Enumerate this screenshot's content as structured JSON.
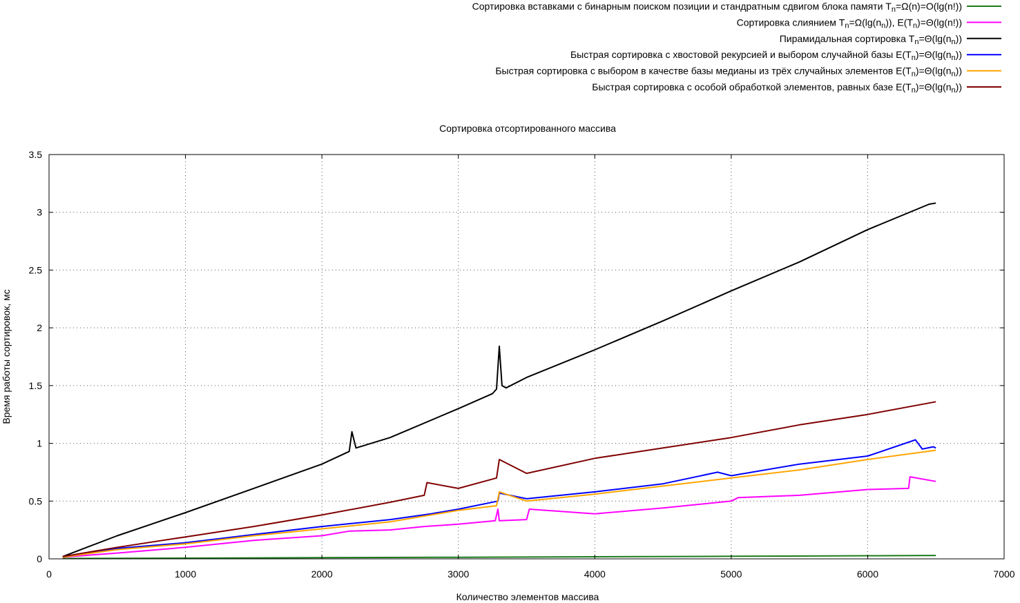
{
  "chart_data": {
    "type": "line",
    "title": "Сортировка отсортированного массива",
    "xlabel": "Количество элементов массива",
    "ylabel": "Время работы сортировок, мс",
    "xlim": [
      0,
      7000
    ],
    "ylim": [
      0,
      3.5
    ],
    "xticks": [
      0,
      1000,
      2000,
      3000,
      4000,
      5000,
      6000,
      7000
    ],
    "yticks": [
      0,
      0.5,
      1,
      1.5,
      2,
      2.5,
      3,
      3.5
    ],
    "grid": "dotted",
    "legend_placement": "top-right",
    "series": [
      {
        "legend": [
          "Сортировка вставками с бинарным поиском позиции и стандратным сдвигом блока памяти T",
          "n",
          "=Ω(n)=O(lg(n!))"
        ],
        "color": "#1a7a1a",
        "x": [
          100,
          1000,
          2000,
          3000,
          4000,
          5000,
          6000,
          6500
        ],
        "y": [
          0.003,
          0.006,
          0.01,
          0.014,
          0.018,
          0.022,
          0.027,
          0.029
        ]
      },
      {
        "legend": [
          "Сортировка слиянием T",
          "n",
          "=Ω(lg(n",
          "n",
          ")), E(T",
          "n",
          ")=Θ(lg(n!))"
        ],
        "color": "#ff00ff",
        "x": [
          100,
          500,
          1000,
          1500,
          2000,
          2200,
          2500,
          2750,
          3000,
          3270,
          3290,
          3300,
          3500,
          3520,
          4000,
          4500,
          5000,
          5050,
          5500,
          6000,
          6300,
          6310,
          6500
        ],
        "y": [
          0.015,
          0.05,
          0.1,
          0.16,
          0.2,
          0.24,
          0.25,
          0.28,
          0.3,
          0.33,
          0.43,
          0.33,
          0.34,
          0.43,
          0.39,
          0.44,
          0.5,
          0.53,
          0.55,
          0.6,
          0.61,
          0.71,
          0.67
        ]
      },
      {
        "legend": [
          "Пирамидальная сортировка T",
          "n",
          "=Θ(lg(n",
          "n",
          "))"
        ],
        "color": "#000000",
        "x": [
          100,
          500,
          1000,
          1500,
          2000,
          2200,
          2220,
          2250,
          2500,
          3000,
          3250,
          3280,
          3300,
          3320,
          3350,
          3500,
          4000,
          4500,
          5000,
          5500,
          6000,
          6450,
          6500
        ],
        "y": [
          0.02,
          0.2,
          0.4,
          0.61,
          0.82,
          0.93,
          1.1,
          0.96,
          1.05,
          1.3,
          1.43,
          1.47,
          1.84,
          1.5,
          1.48,
          1.57,
          1.81,
          2.06,
          2.32,
          2.57,
          2.85,
          3.07,
          3.08
        ]
      },
      {
        "legend": [
          "Быстрая сортировка с хвостовой рекурсией и выбором случайной базы E(T",
          "n",
          ")=Θ(lg(n",
          "n",
          "))"
        ],
        "color": "#0000ff",
        "x": [
          100,
          500,
          1000,
          1500,
          2000,
          2500,
          2800,
          3000,
          3290,
          3300,
          3500,
          4000,
          4500,
          4900,
          5000,
          5500,
          6000,
          6350,
          6400,
          6480,
          6500
        ],
        "y": [
          0.02,
          0.09,
          0.14,
          0.21,
          0.28,
          0.34,
          0.39,
          0.43,
          0.5,
          0.57,
          0.52,
          0.58,
          0.65,
          0.75,
          0.72,
          0.82,
          0.89,
          1.03,
          0.95,
          0.97,
          0.96
        ]
      },
      {
        "legend": [
          "Быстрая сортировка с выбором в качестве базы медианы из трёх случайных элементов E(T",
          "n",
          ")=Θ(lg(n",
          "n",
          "))"
        ],
        "color": "#ffa500",
        "x": [
          100,
          500,
          1000,
          1500,
          2000,
          2500,
          3000,
          3280,
          3300,
          3500,
          4000,
          4500,
          5000,
          5500,
          6000,
          6500
        ],
        "y": [
          0.015,
          0.08,
          0.13,
          0.2,
          0.26,
          0.32,
          0.42,
          0.46,
          0.58,
          0.5,
          0.56,
          0.63,
          0.7,
          0.77,
          0.86,
          0.94
        ]
      },
      {
        "legend": [
          "Быстрая сортировка с особой обработкой элементов, равных базе E(T",
          "n",
          ")=Θ(lg(n",
          "n",
          "))"
        ],
        "color": "#7f0000",
        "x": [
          100,
          500,
          1000,
          1500,
          2000,
          2500,
          2750,
          2770,
          3000,
          3280,
          3300,
          3500,
          4000,
          4500,
          5000,
          5500,
          6000,
          6500
        ],
        "y": [
          0.02,
          0.1,
          0.19,
          0.28,
          0.38,
          0.49,
          0.55,
          0.66,
          0.61,
          0.7,
          0.86,
          0.74,
          0.87,
          0.96,
          1.05,
          1.16,
          1.25,
          1.36
        ]
      }
    ]
  }
}
